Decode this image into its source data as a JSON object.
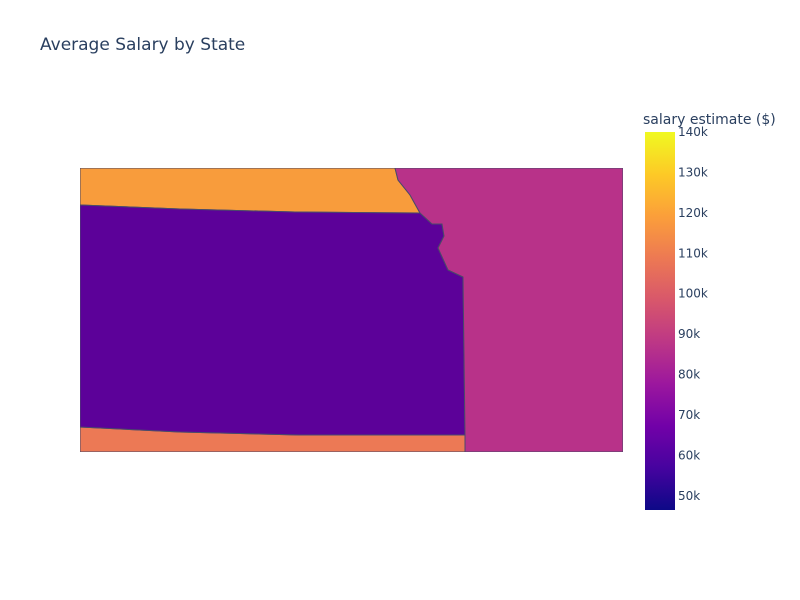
{
  "chart_data": {
    "type": "choropleth",
    "title": "Average Salary by State",
    "colorbar": {
      "title": "salary estimate ($)",
      "range": [
        46500,
        140000
      ],
      "ticks": [
        {
          "value": 50000,
          "label": "50k"
        },
        {
          "value": 60000,
          "label": "60k"
        },
        {
          "value": 70000,
          "label": "70k"
        },
        {
          "value": 80000,
          "label": "80k"
        },
        {
          "value": 90000,
          "label": "90k"
        },
        {
          "value": 100000,
          "label": "100k"
        },
        {
          "value": 110000,
          "label": "110k"
        },
        {
          "value": 120000,
          "label": "120k"
        },
        {
          "value": 130000,
          "label": "130k"
        },
        {
          "value": 140000,
          "label": "140k"
        }
      ],
      "colorscale": [
        "#0d0887",
        "#46039f",
        "#7201a8",
        "#9c179e",
        "#bd3786",
        "#d8576b",
        "#ed7953",
        "#fb9f3a",
        "#fdca26",
        "#f0f921"
      ]
    },
    "regions": [
      {
        "id": "north",
        "value": 117000,
        "color": "#f89c3c"
      },
      {
        "id": "kansas",
        "value": 58000,
        "color": "#5c0199"
      },
      {
        "id": "east",
        "value": 82000,
        "color": "#b83289"
      },
      {
        "id": "south",
        "value": 108000,
        "color": "#ec7955"
      }
    ]
  }
}
